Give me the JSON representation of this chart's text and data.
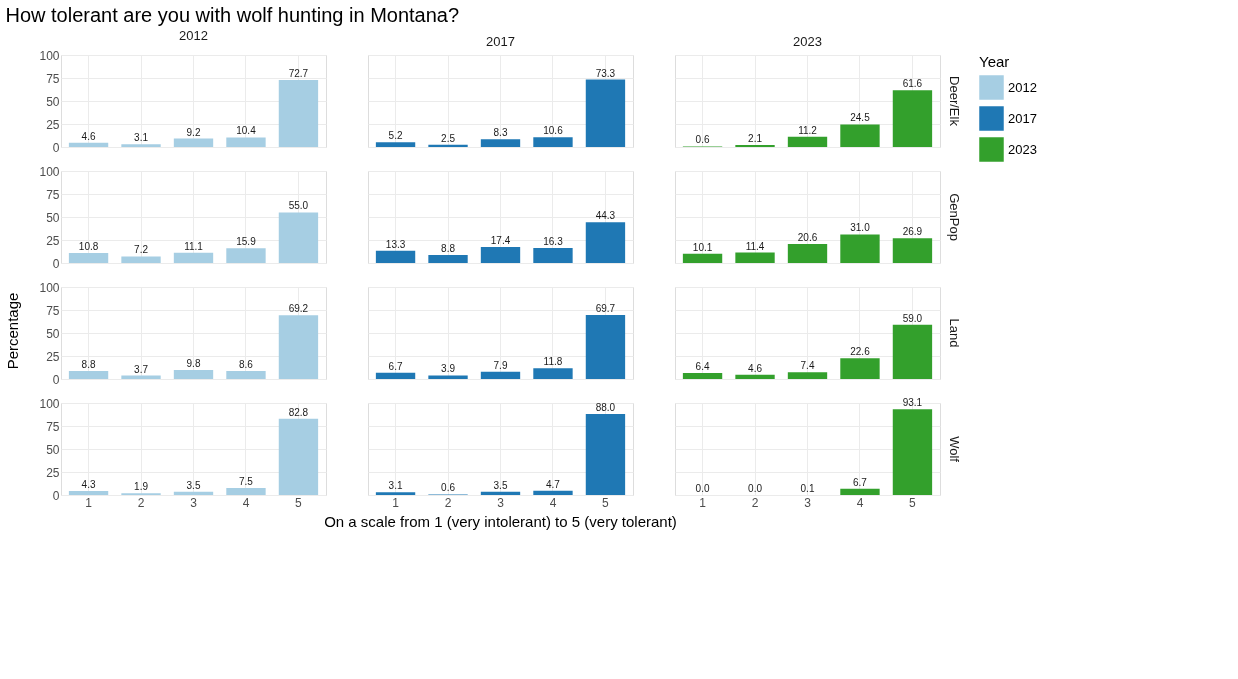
{
  "chart_data": [
    {
      "type": "bar",
      "title": "How tolerant are you with wolf hunting in Montana?",
      "subtitle": "2012",
      "categories": [
        "1",
        "2",
        "3",
        "4",
        "5"
      ],
      "series": [
        {
          "name": "2012",
          "color": "#a6cee3",
          "values": [
            4.6,
            3.1,
            9.2,
            10.4,
            72.7
          ]
        }
      ],
      "ylim": [
        0,
        100
      ],
      "yticks": [
        0,
        25,
        50,
        75,
        100
      ],
      "grid": true,
      "data_labels": true,
      "tick_labels": "y"
    },
    {
      "type": "bar",
      "subtitle": "2017",
      "categories": [
        "1",
        "2",
        "3",
        "4",
        "5"
      ],
      "series": [
        {
          "name": "2017",
          "color": "#1f78b4",
          "values": [
            5.2,
            2.5,
            8.3,
            10.6,
            73.3
          ]
        }
      ],
      "ylim": [
        0,
        100
      ],
      "yticks": [
        0,
        25,
        50,
        75,
        100
      ],
      "grid": true,
      "data_labels": true,
      "tick_labels": false
    },
    {
      "type": "bar",
      "subtitle": "2023",
      "y2label": "Deer/Elk",
      "categories": [
        "1",
        "2",
        "3",
        "4",
        "5"
      ],
      "series": [
        {
          "name": "2023",
          "color": "#33a02c",
          "values": [
            0.6,
            2.1,
            11.2,
            24.5,
            61.6
          ]
        }
      ],
      "ylim": [
        0,
        100
      ],
      "yticks": [
        0,
        25,
        50,
        75,
        100
      ],
      "grid": true,
      "data_labels": true,
      "tick_labels": false
    },
    {
      "type": "bar",
      "categories": [
        "1",
        "2",
        "3",
        "4",
        "5"
      ],
      "series": [
        {
          "name": "2012",
          "color": "#a6cee3",
          "values": [
            10.8,
            7.2,
            11.1,
            15.9,
            55.0
          ]
        }
      ],
      "value_labels": [
        "10.8",
        "7.2",
        "11.1",
        "15.9",
        "55.0"
      ],
      "ylim": [
        0,
        100
      ],
      "yticks": [
        0,
        25,
        50,
        75,
        100
      ],
      "grid": true,
      "tick_labels": "y"
    },
    {
      "type": "bar",
      "categories": [
        "1",
        "2",
        "3",
        "4",
        "5"
      ],
      "series": [
        {
          "name": "2017",
          "color": "#1f78b4",
          "values": [
            13.3,
            8.8,
            17.4,
            16.3,
            44.3
          ]
        }
      ],
      "ylim": [
        0,
        100
      ],
      "yticks": [
        0,
        25,
        50,
        75,
        100
      ],
      "grid": true,
      "data_labels": true,
      "tick_labels": false
    },
    {
      "type": "bar",
      "y2label": "GenPop",
      "legend": "right",
      "legend_title": "Year",
      "categories": [
        "1",
        "2",
        "3",
        "4",
        "5"
      ],
      "series": [
        {
          "name": "2023",
          "color": "#33a02c",
          "values": [
            10.1,
            11.4,
            20.6,
            31.0,
            26.9
          ]
        }
      ],
      "value_labels": [
        "10.1",
        "11.4",
        "20.6",
        "31.0",
        "26.9"
      ],
      "ylim": [
        0,
        100
      ],
      "yticks": [
        0,
        25,
        50,
        75,
        100
      ],
      "grid": true,
      "tick_labels": false
    },
    {
      "type": "bar",
      "ylabel": "Percentage",
      "categories": [
        "1",
        "2",
        "3",
        "4",
        "5"
      ],
      "series": [
        {
          "name": "2012",
          "color": "#a6cee3",
          "values": [
            8.8,
            3.7,
            9.8,
            8.6,
            69.2
          ]
        }
      ],
      "ylim": [
        0,
        100
      ],
      "yticks": [
        0,
        25,
        50,
        75,
        100
      ],
      "grid": true,
      "data_labels": true,
      "tick_labels": "y"
    },
    {
      "type": "bar",
      "categories": [
        "1",
        "2",
        "3",
        "4",
        "5"
      ],
      "series": [
        {
          "name": "2017",
          "color": "#1f78b4",
          "values": [
            6.7,
            3.9,
            7.9,
            11.8,
            69.7
          ]
        }
      ],
      "ylim": [
        0,
        100
      ],
      "yticks": [
        0,
        25,
        50,
        75,
        100
      ],
      "grid": true,
      "data_labels": true,
      "tick_labels": false
    },
    {
      "type": "bar",
      "y2label": "Land",
      "categories": [
        "1",
        "2",
        "3",
        "4",
        "5"
      ],
      "series": [
        {
          "name": "2023",
          "color": "#33a02c",
          "values": [
            6.4,
            4.6,
            7.4,
            22.6,
            59.0
          ]
        }
      ],
      "value_labels": [
        "6.4",
        "4.6",
        "7.4",
        "22.6",
        "59.0"
      ],
      "ylim": [
        0,
        100
      ],
      "yticks": [
        0,
        25,
        50,
        75,
        100
      ],
      "grid": true,
      "tick_labels": false
    },
    {
      "type": "bar",
      "categories": [
        "1",
        "2",
        "3",
        "4",
        "5"
      ],
      "series": [
        {
          "name": "2012",
          "color": "#a6cee3",
          "values": [
            4.3,
            1.9,
            3.5,
            7.5,
            82.8
          ]
        }
      ],
      "ylim": [
        0,
        100
      ],
      "yticks": [
        0,
        25,
        50,
        75,
        100
      ],
      "grid": true,
      "data_labels": true
    },
    {
      "type": "bar",
      "xlabel": "On a scale from 1 (very intolerant) to 5 (very tolerant)",
      "categories": [
        "1",
        "2",
        "3",
        "4",
        "5"
      ],
      "series": [
        {
          "name": "2017",
          "color": "#1f78b4",
          "values": [
            3.1,
            0.6,
            3.5,
            4.7,
            88.0
          ]
        }
      ],
      "value_labels": [
        "3.1",
        "0.6",
        "3.5",
        "4.7",
        "88.0"
      ],
      "ylim": [
        0,
        100
      ],
      "yticks": [
        0,
        25,
        50,
        75,
        100
      ],
      "grid": true,
      "tick_labels": "x"
    },
    {
      "type": "bar",
      "y2label": "Wolf",
      "categories": [
        "1",
        "2",
        "3",
        "4",
        "5"
      ],
      "series": [
        {
          "name": "2023",
          "color": "#33a02c",
          "values": [
            0.0,
            0.0,
            0.1,
            6.7,
            93.1
          ]
        }
      ],
      "value_labels": [
        "0.0",
        "0.0",
        "0.1",
        "6.7",
        "93.1"
      ],
      "ylim": [
        0,
        100
      ],
      "yticks": [
        0,
        25,
        50,
        75,
        100
      ],
      "grid": true,
      "tick_labels": "x"
    }
  ]
}
